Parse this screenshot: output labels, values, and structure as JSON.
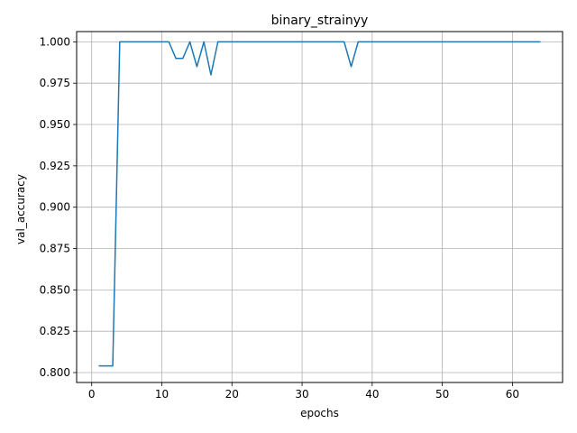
{
  "chart_data": {
    "type": "line",
    "title": "binary_strainyy",
    "xlabel": "epochs",
    "ylabel": "val_accuracy",
    "xlim": [
      -2.15,
      67.15
    ],
    "ylim": [
      0.794,
      1.0062
    ],
    "x_ticks": [
      0,
      10,
      20,
      30,
      40,
      50,
      60
    ],
    "y_ticks": [
      0.8,
      0.825,
      0.85,
      0.875,
      0.9,
      0.925,
      0.95,
      0.975,
      1.0
    ],
    "x_tick_labels": [
      "0",
      "10",
      "20",
      "30",
      "40",
      "50",
      "60"
    ],
    "y_tick_labels": [
      "0.800",
      "0.825",
      "0.850",
      "0.875",
      "0.900",
      "0.925",
      "0.950",
      "0.975",
      "1.000"
    ],
    "grid": true,
    "series": [
      {
        "color": "#1f77b4",
        "x": [
          1,
          2,
          3,
          4,
          5,
          6,
          7,
          8,
          9,
          10,
          11,
          12,
          13,
          14,
          15,
          16,
          17,
          18,
          19,
          20,
          21,
          22,
          23,
          24,
          25,
          26,
          27,
          28,
          29,
          30,
          31,
          32,
          33,
          34,
          35,
          36,
          37,
          38,
          39,
          40,
          41,
          42,
          43,
          44,
          45,
          46,
          47,
          48,
          49,
          50,
          51,
          52,
          53,
          54,
          55,
          56,
          57,
          58,
          59,
          60,
          61,
          62,
          63,
          64
        ],
        "y": [
          0.804,
          0.804,
          0.804,
          1.0,
          1.0,
          1.0,
          1.0,
          1.0,
          1.0,
          1.0,
          1.0,
          0.99,
          0.99,
          1.0,
          0.985,
          1.0,
          0.98,
          1.0,
          1.0,
          1.0,
          1.0,
          1.0,
          1.0,
          1.0,
          1.0,
          1.0,
          1.0,
          1.0,
          1.0,
          1.0,
          1.0,
          1.0,
          1.0,
          1.0,
          1.0,
          1.0,
          0.985,
          1.0,
          1.0,
          1.0,
          1.0,
          1.0,
          1.0,
          1.0,
          1.0,
          1.0,
          1.0,
          1.0,
          1.0,
          1.0,
          1.0,
          1.0,
          1.0,
          1.0,
          1.0,
          1.0,
          1.0,
          1.0,
          1.0,
          1.0,
          1.0,
          1.0,
          1.0,
          1.0
        ]
      }
    ]
  }
}
